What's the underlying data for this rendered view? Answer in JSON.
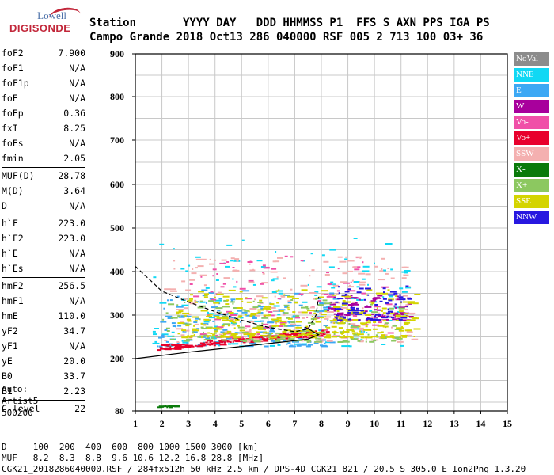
{
  "logo": {
    "brand": "Lowell",
    "product": "DIGISONDE"
  },
  "header": {
    "line1": "Station       YYYY DAY   DDD HHMMSS P1  FFS S AXN PPS IGA PS",
    "line2": "Campo Grande 2018 Oct13 286 040000 RSF 005 2 713 100 03+ 36"
  },
  "params": {
    "g1": [
      {
        "k": "foF2",
        "v": "7.900"
      },
      {
        "k": "foF1",
        "v": "N/A"
      },
      {
        "k": "foF1p",
        "v": "N/A"
      },
      {
        "k": "foE",
        "v": "N/A"
      },
      {
        "k": "foEp",
        "v": "0.36"
      },
      {
        "k": "fxI",
        "v": "8.25"
      },
      {
        "k": "foEs",
        "v": "N/A"
      },
      {
        "k": "fmin",
        "v": "2.05"
      }
    ],
    "g2": [
      {
        "k": "MUF(D)",
        "v": "28.78"
      },
      {
        "k": "M(D)",
        "v": "3.64"
      },
      {
        "k": "D",
        "v": "N/A"
      }
    ],
    "g3": [
      {
        "k": "h`F",
        "v": "223.0"
      },
      {
        "k": "h`F2",
        "v": "223.0"
      },
      {
        "k": "h`E",
        "v": "N/A"
      },
      {
        "k": "h`Es",
        "v": "N/A"
      }
    ],
    "g4": [
      {
        "k": "hmF2",
        "v": "256.5"
      },
      {
        "k": "hmF1",
        "v": "N/A"
      },
      {
        "k": "hmE",
        "v": "110.0"
      },
      {
        "k": "yF2",
        "v": "34.7"
      },
      {
        "k": "yF1",
        "v": "N/A"
      },
      {
        "k": "yE",
        "v": "20.0"
      },
      {
        "k": "B0",
        "v": "33.7"
      },
      {
        "k": "B1",
        "v": "2.23"
      }
    ],
    "g5": [
      {
        "k": "C-level",
        "v": "22"
      }
    ]
  },
  "auto": {
    "line1": "Auto:",
    "line2": "Artist5",
    "line3": "500200"
  },
  "legend": [
    {
      "label": "NoVal",
      "color": "#8c8c8c"
    },
    {
      "label": "NNE",
      "color": "#10d8f4"
    },
    {
      "label": "E",
      "color": "#3ca8f4"
    },
    {
      "label": "W",
      "color": "#a8009c"
    },
    {
      "label": "Vo-",
      "color": "#f050a8"
    },
    {
      "label": "Vo+",
      "color": "#e8002c"
    },
    {
      "label": "SSW",
      "color": "#f4b0b0"
    },
    {
      "label": "X-",
      "color": "#0a7a0a"
    },
    {
      "label": "X+",
      "color": "#8cc860"
    },
    {
      "label": "SSE",
      "color": "#d4d400"
    },
    {
      "label": "NNW",
      "color": "#2818e0"
    }
  ],
  "footer": {
    "line1": "D     100  200  400  600  800 1000 1500 3000 [km]",
    "line2": "MUF   8.2  8.3  8.8  9.6 10.6 12.2 16.8 28.8 [MHz]",
    "line3": "CGK21_2018286040000.RSF / 284fx512h 50 kHz 2.5 km / DPS-4D CGK21 821 / 20.5 S 305.0 E Ion2Png 1.3.20"
  },
  "chart_data": {
    "type": "scatter",
    "xlim": [
      1,
      15
    ],
    "ylim": [
      80,
      900
    ],
    "x_ticks": [
      1,
      2,
      3,
      4,
      5,
      6,
      7,
      8,
      9,
      10,
      11,
      12,
      13,
      14,
      15
    ],
    "y_ticks": [
      80,
      200,
      300,
      400,
      500,
      600,
      700,
      800,
      900
    ],
    "grid": true,
    "series": [
      {
        "name": "NNE",
        "color": "#10d8f4",
        "region": {
          "x": [
            1.6,
            11.2
          ],
          "y": [
            230,
            480
          ]
        }
      },
      {
        "name": "E",
        "color": "#3ca8f4",
        "region": {
          "x": [
            1.8,
            8.5
          ],
          "y": [
            230,
            360
          ]
        }
      },
      {
        "name": "W",
        "color": "#a8009c",
        "region": {
          "x": [
            8.2,
            11.4
          ],
          "y": [
            290,
            350
          ]
        }
      },
      {
        "name": "Vo-",
        "color": "#f050a8",
        "region": {
          "x": [
            3.0,
            10.5
          ],
          "y": [
            250,
            440
          ]
        }
      },
      {
        "name": "Vo+",
        "color": "#e8002c",
        "region": {
          "x": [
            1.8,
            8.2
          ],
          "y": [
            220,
            260
          ]
        }
      },
      {
        "name": "SSW",
        "color": "#f4b0b0",
        "region": {
          "x": [
            2.0,
            11.5
          ],
          "y": [
            240,
            440
          ]
        }
      },
      {
        "name": "X-",
        "color": "#0a7a0a",
        "region": {
          "x": [
            1.8,
            2.5
          ],
          "y": [
            90,
            93
          ]
        }
      },
      {
        "name": "X+",
        "color": "#8cc860",
        "region": {
          "x": [
            2.0,
            11.0
          ],
          "y": [
            240,
            340
          ]
        }
      },
      {
        "name": "SSE",
        "color": "#d4d400",
        "region": {
          "x": [
            2.5,
            11.5
          ],
          "y": [
            250,
            360
          ]
        }
      },
      {
        "name": "NNW",
        "color": "#2818e0",
        "region": {
          "x": [
            8.5,
            11.3
          ],
          "y": [
            290,
            370
          ]
        }
      }
    ],
    "curves": [
      {
        "style": "solid",
        "points": [
          [
            1,
            200
          ],
          [
            3,
            215
          ],
          [
            5,
            228
          ],
          [
            6.5,
            238
          ],
          [
            7.5,
            245
          ],
          [
            7.9,
            255
          ],
          [
            7.7,
            262
          ],
          [
            7.4,
            272
          ]
        ]
      },
      {
        "style": "dashed",
        "points": [
          [
            1,
            412
          ],
          [
            2,
            355
          ],
          [
            3,
            330
          ],
          [
            4,
            308
          ],
          [
            5,
            288
          ],
          [
            6,
            272
          ],
          [
            7,
            262
          ],
          [
            7.5,
            268
          ],
          [
            7.8,
            300
          ],
          [
            7.9,
            342
          ]
        ]
      }
    ]
  }
}
